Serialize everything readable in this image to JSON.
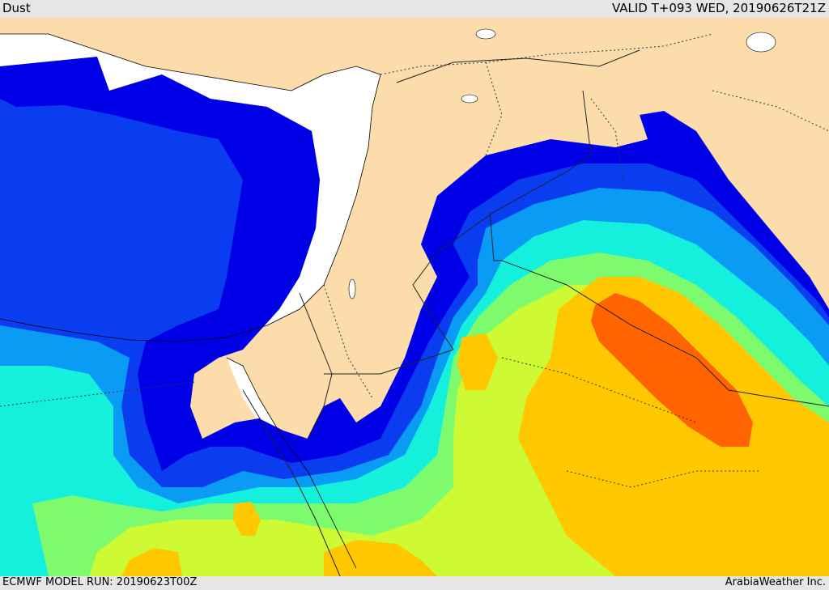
{
  "header": {
    "title": "Dust",
    "valid_time": "VALID T+093 WED, 20190626T21Z"
  },
  "footer": {
    "model_run": "ECMWF MODEL RUN: 20190623T00Z",
    "credit": "ArabiaWeather Inc."
  },
  "map": {
    "field": "Dust",
    "colors": {
      "land": "#fbdcaa",
      "sea": "#ffffff",
      "dust_level_1": "#0000e6",
      "dust_level_2": "#0a3cf0",
      "dust_level_3": "#0a9bf5",
      "dust_level_4": "#14f0dc",
      "dust_level_5": "#7dfa6e",
      "dust_level_6": "#cdfa32",
      "dust_level_7": "#ffc800",
      "dust_level_8": "#ff6400"
    }
  }
}
